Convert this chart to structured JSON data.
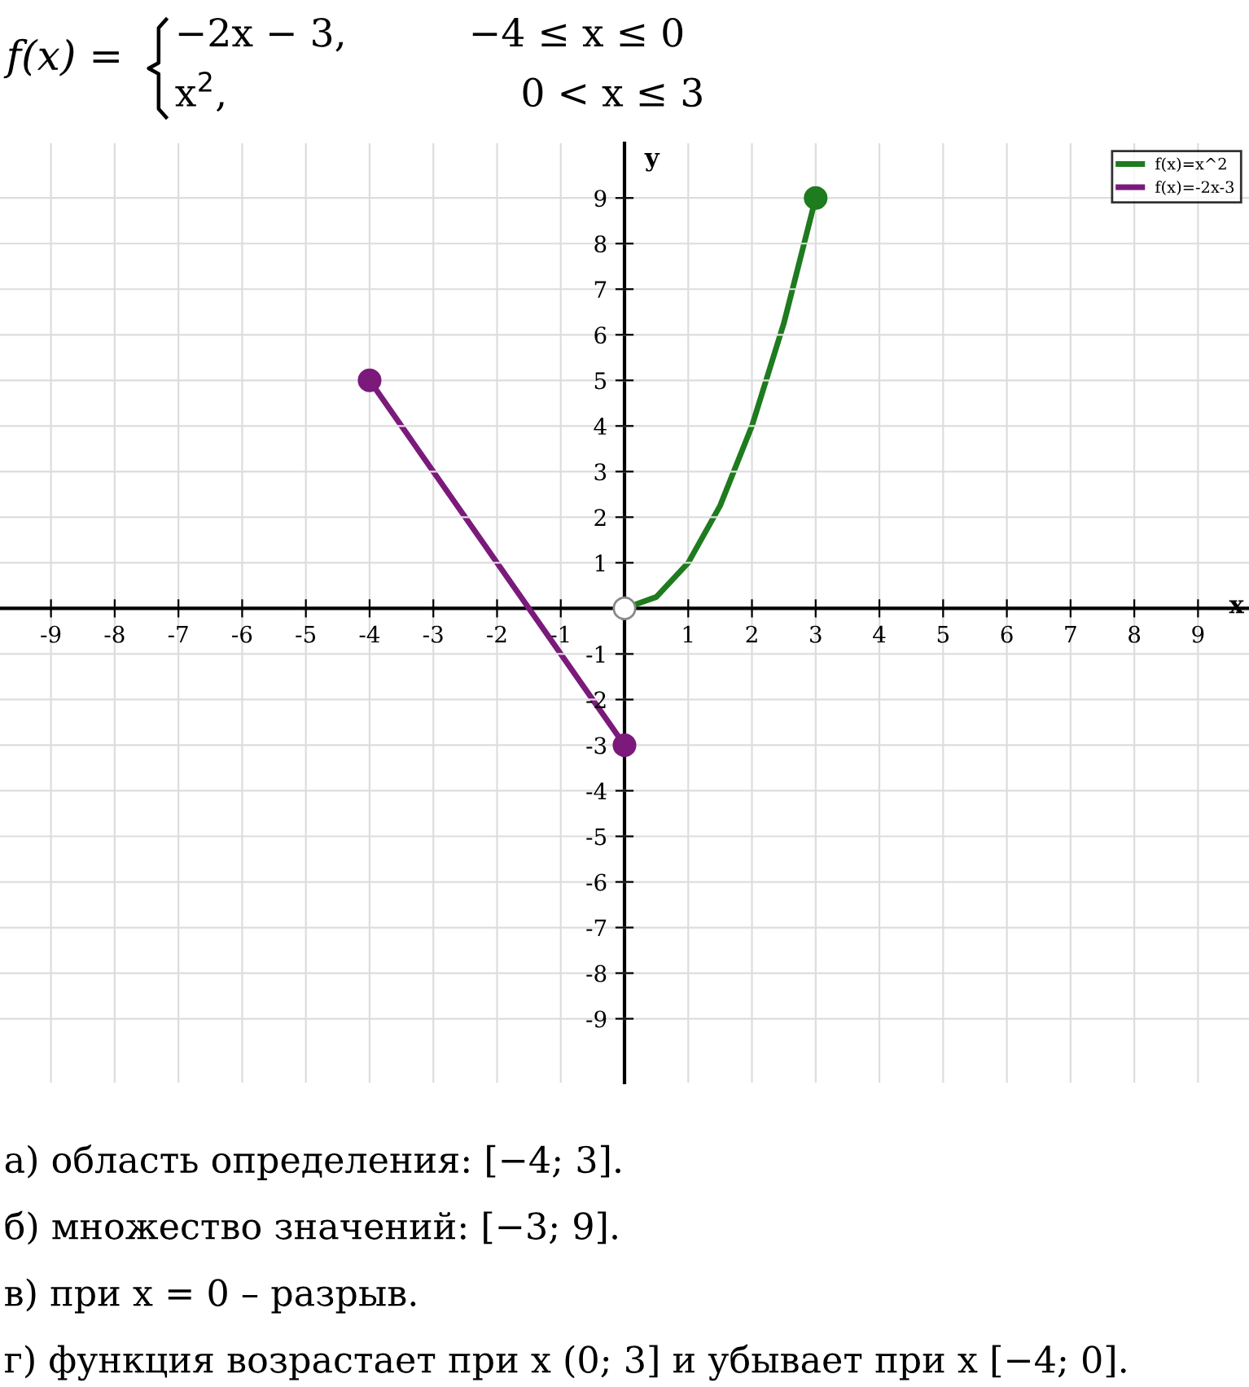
{
  "chart_data": {
    "type": "line",
    "title": "f(x) =",
    "xlabel": "x",
    "ylabel": "y",
    "annotations": [
      "−2x − 3,          −4 ≤ x ≤ 0",
      "x$^{2}$,                        0 < x ≤ 3",
      "а) область определения: [−4; 3].",
      "б) множество значений: [−3; 9].",
      "в) при x = 0 – разрыв.",
      "г) функция возрастает при x (0; 3] и убывает при x [−4; 0]."
    ],
    "series": [
      {
        "name": "f(x)=x^2",
        "color": "#1e7b1e",
        "x": [
          0,
          0.5,
          1,
          1.5,
          2,
          2.5,
          3
        ],
        "values": [
          0,
          0.25,
          1,
          2.25,
          4,
          6.25,
          9
        ]
      },
      {
        "name": "f(x)=-2x-3",
        "color": "#7b1a7b",
        "x": [
          -4,
          0
        ],
        "values": [
          5,
          -3
        ]
      },
      {
        "type": "scatter",
        "color": "#1e7b1e",
        "x": [
          3
        ],
        "values": [
          9
        ]
      },
      {
        "type": "scatter",
        "color": "#7b1a7b",
        "x": [
          -4,
          0
        ],
        "values": [
          5,
          -3
        ]
      },
      {
        "type": "scatter",
        "color": "#ffffff",
        "x": [
          0
        ],
        "values": [
          0
        ]
      }
    ],
    "xlim": [
      -9.8,
      9.8
    ],
    "ylim": [
      -10.4,
      10.2
    ],
    "xticks": [
      -9,
      -8,
      -7,
      -6,
      -5,
      -4,
      -3,
      -2,
      -1,
      1,
      2,
      3,
      4,
      5,
      6,
      7,
      8,
      9
    ],
    "yticks": [
      -9,
      -8,
      -7,
      -6,
      -5,
      -4,
      -3,
      -2,
      -1,
      1,
      2,
      3,
      4,
      5,
      6,
      7,
      8,
      9
    ],
    "grid": true,
    "legend": "top right",
    "line_style": "solid"
  }
}
